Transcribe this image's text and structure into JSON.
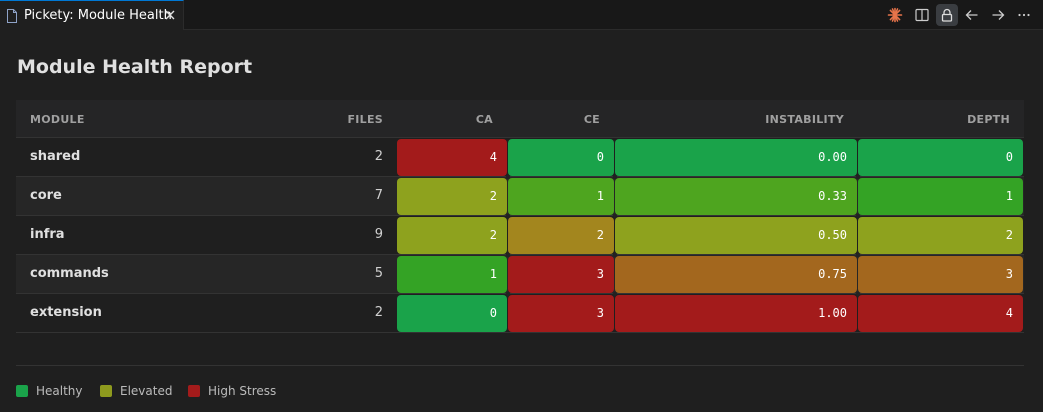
{
  "tab": {
    "title": "Pickety: Module Health"
  },
  "report": {
    "title": "Module Health Report",
    "columns": {
      "module": "MODULE",
      "files": "FILES",
      "ca": "CA",
      "ce": "CE",
      "instability": "INSTABILITY",
      "depth": "DEPTH"
    },
    "rows": [
      {
        "module": "shared",
        "files": "2",
        "ca": "4",
        "ce": "0",
        "instability": "0.00",
        "depth": "0",
        "status": {
          "ca": "high",
          "ce": "healthy",
          "instability": "healthy",
          "depth": "healthy"
        }
      },
      {
        "module": "core",
        "files": "7",
        "ca": "2",
        "ce": "1",
        "instability": "0.33",
        "depth": "1",
        "status": {
          "ca": "elevated",
          "ce": "healthy",
          "instability": "healthy",
          "depth": "healthy"
        }
      },
      {
        "module": "infra",
        "files": "9",
        "ca": "2",
        "ce": "2",
        "instability": "0.50",
        "depth": "2",
        "status": {
          "ca": "elevated",
          "ce": "elevated",
          "instability": "elevated",
          "depth": "elevated"
        }
      },
      {
        "module": "commands",
        "files": "5",
        "ca": "1",
        "ce": "3",
        "instability": "0.75",
        "depth": "3",
        "status": {
          "ca": "healthy",
          "ce": "high",
          "instability": "elevated",
          "depth": "elevated"
        }
      },
      {
        "module": "extension",
        "files": "2",
        "ca": "0",
        "ce": "3",
        "instability": "1.00",
        "depth": "4",
        "status": {
          "ca": "healthy",
          "ce": "high",
          "instability": "high",
          "depth": "high"
        }
      }
    ],
    "cell_colors": [
      {
        "ca": "#a31b1b",
        "ce": "#1aa34a",
        "instability": "#1aa34a",
        "depth": "#1aa34a"
      },
      {
        "ca": "#8ea21e",
        "ce": "#4ea51f",
        "instability": "#4ea51f",
        "depth": "#34a325"
      },
      {
        "ca": "#8ea21e",
        "ce": "#a3861e",
        "instability": "#8ea21e",
        "depth": "#8ea21e"
      },
      {
        "ca": "#34a325",
        "ce": "#a31b1b",
        "instability": "#a3671e",
        "depth": "#a3671e"
      },
      {
        "ca": "#1aa34a",
        "ce": "#a31b1b",
        "instability": "#a31b1b",
        "depth": "#a31b1b"
      }
    ]
  },
  "legend": [
    {
      "label": "Healthy",
      "color": "#1aa34a"
    },
    {
      "label": "Elevated",
      "color": "#8e9a1e"
    },
    {
      "label": "High Stress",
      "color": "#a31b1b"
    }
  ],
  "toolbar": {
    "icons": [
      "sparkle-icon",
      "split-editor-icon",
      "lock-icon",
      "arrow-left-icon",
      "arrow-right-icon",
      "more-icon"
    ]
  }
}
